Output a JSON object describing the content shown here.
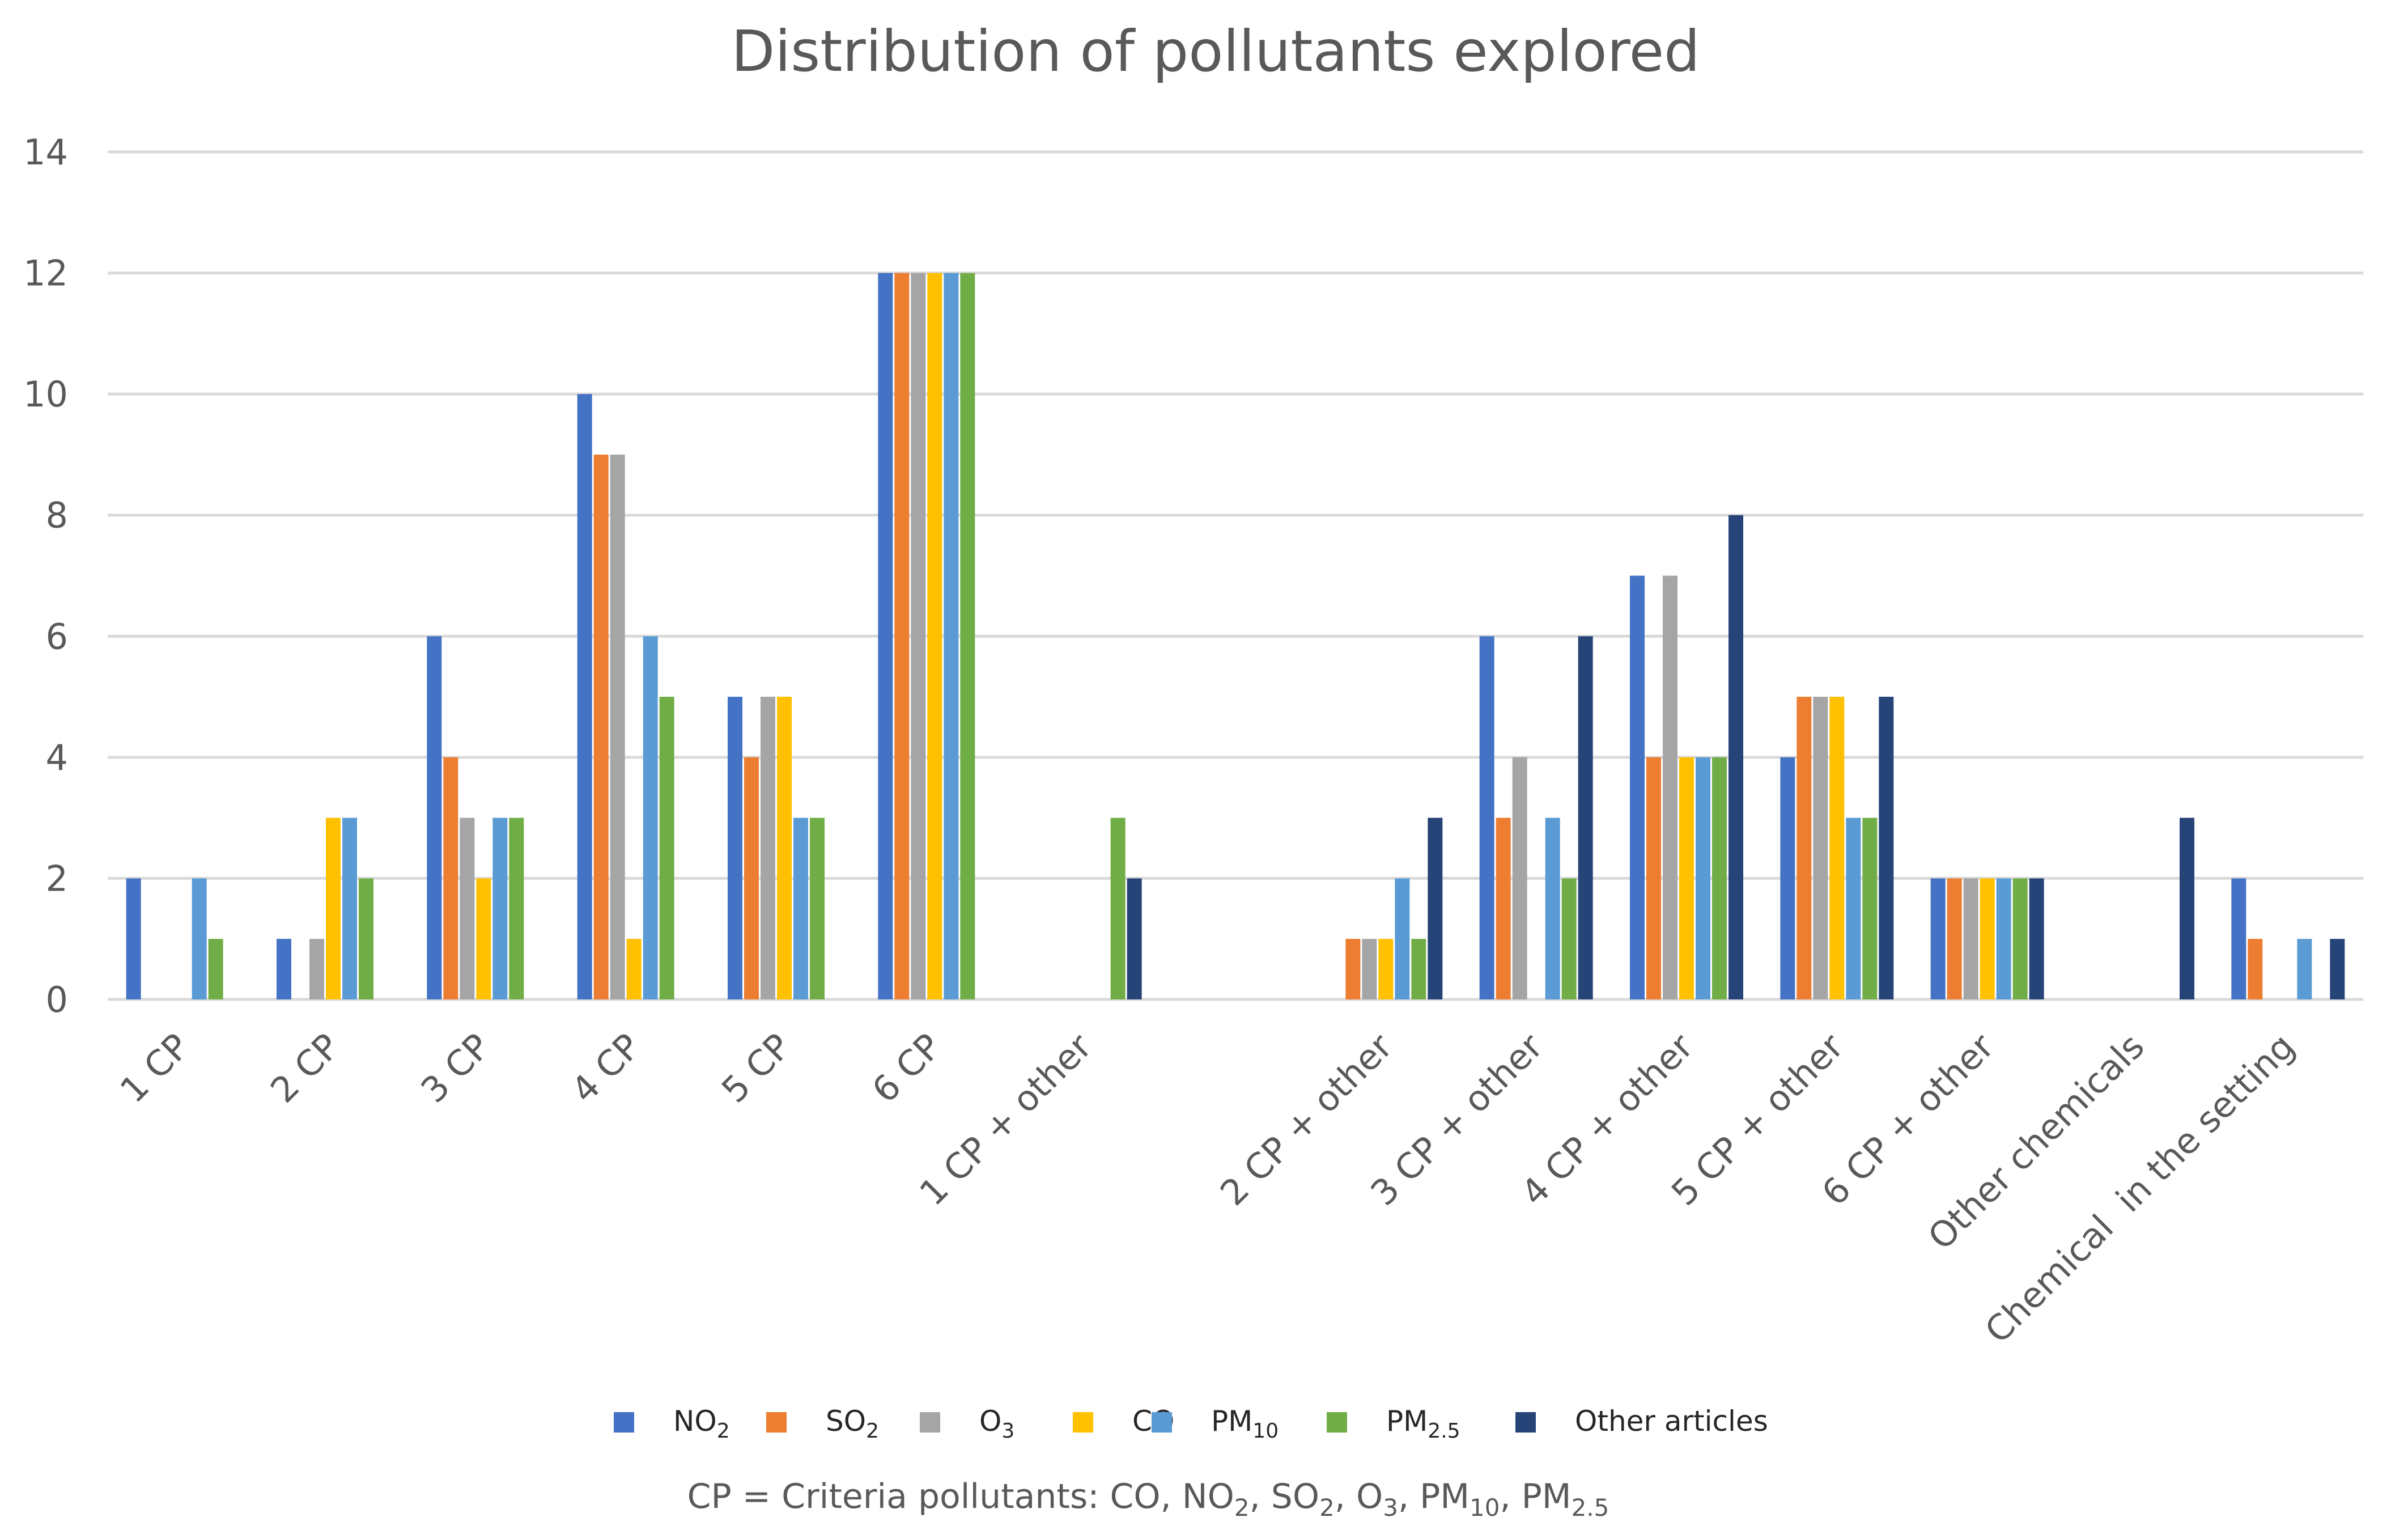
{
  "chart_data": {
    "type": "bar",
    "title": "Distribution of pollutants explored",
    "xlabel": "",
    "ylabel": "",
    "ylim": [
      0,
      14
    ],
    "yticks": [
      "0",
      "2",
      "4",
      "6",
      "8",
      "10",
      "12",
      "14"
    ],
    "grid": true,
    "legend_position": "bottom",
    "categories": [
      "1 CP",
      "2 CP",
      "3 CP",
      "4 CP",
      "5 CP",
      "6 CP",
      "1 CP + other",
      "",
      "2 CP + other",
      "3 CP + other",
      "4 CP + other",
      "5 CP + other",
      "6 CP + other",
      "Other chemicals",
      "Chemical  in the setting"
    ],
    "series": [
      {
        "name": "NO2",
        "label_main": "NO",
        "label_sub": "2",
        "color": "#4472c4",
        "values": [
          2,
          1,
          6,
          10,
          5,
          12,
          0,
          0,
          0,
          6,
          7,
          4,
          2,
          0,
          2
        ]
      },
      {
        "name": "SO2",
        "label_main": "SO",
        "label_sub": "2",
        "color": "#ed7d31",
        "values": [
          0,
          0,
          4,
          9,
          4,
          12,
          0,
          0,
          1,
          3,
          4,
          5,
          2,
          0,
          1
        ]
      },
      {
        "name": "O3",
        "label_main": "O",
        "label_sub": "3",
        "color": "#a5a5a5",
        "values": [
          0,
          1,
          3,
          9,
          5,
          12,
          0,
          0,
          1,
          4,
          7,
          5,
          2,
          0,
          0
        ]
      },
      {
        "name": "CO",
        "label_main": "CO",
        "label_sub": "",
        "color": "#ffc000",
        "values": [
          0,
          3,
          2,
          1,
          5,
          12,
          0,
          0,
          1,
          0,
          4,
          5,
          2,
          0,
          0
        ]
      },
      {
        "name": "PM10",
        "label_main": "PM",
        "label_sub": "10",
        "color": "#5b9bd5",
        "values": [
          2,
          3,
          3,
          6,
          3,
          12,
          0,
          0,
          2,
          3,
          4,
          3,
          2,
          0,
          1
        ]
      },
      {
        "name": "PM2.5",
        "label_main": "PM",
        "label_sub": "2.5",
        "color": "#70ad47",
        "values": [
          1,
          2,
          3,
          5,
          3,
          12,
          3,
          0,
          1,
          2,
          4,
          3,
          2,
          0,
          0
        ]
      },
      {
        "name": "Other articles",
        "label_main": "Other articles",
        "label_sub": "",
        "color": "#264478",
        "values": [
          0,
          0,
          0,
          0,
          0,
          0,
          2,
          0,
          3,
          6,
          8,
          5,
          2,
          3,
          1
        ]
      }
    ],
    "footnote": {
      "parts": [
        {
          "t": "CP = Criteria pollutants: CO, NO",
          "sub": false
        },
        {
          "t": "2",
          "sub": true
        },
        {
          "t": ", SO",
          "sub": false
        },
        {
          "t": "2",
          "sub": true
        },
        {
          "t": ", O",
          "sub": false
        },
        {
          "t": "3",
          "sub": true
        },
        {
          "t": ", PM",
          "sub": false
        },
        {
          "t": "10",
          "sub": true
        },
        {
          "t": ", PM",
          "sub": false
        },
        {
          "t": "2.5",
          "sub": true
        }
      ]
    }
  }
}
